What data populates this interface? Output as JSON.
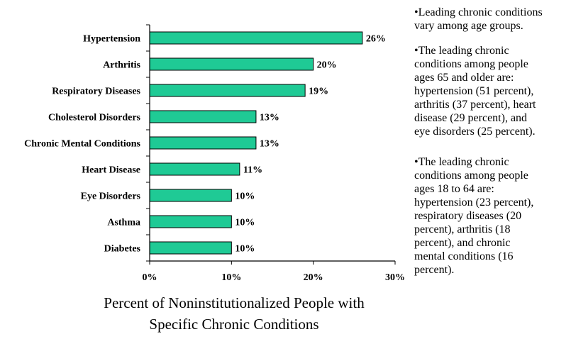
{
  "chart_data": {
    "type": "bar",
    "orientation": "horizontal",
    "categories": [
      "Hypertension",
      "Arthritis",
      "Respiratory Diseases",
      "Cholesterol Disorders",
      "Chronic Mental Conditions",
      "Heart Disease",
      "Eye Disorders",
      "Asthma",
      "Diabetes"
    ],
    "values": [
      26,
      20,
      19,
      13,
      13,
      11,
      10,
      10,
      10
    ],
    "data_labels": [
      "26%",
      "20%",
      "19%",
      "13%",
      "13%",
      "11%",
      "10%",
      "10%",
      "10%"
    ],
    "xlabel_lines": [
      "Percent of Noninstitutionalized People with",
      "Specific Chronic Conditions"
    ],
    "xlim": [
      0,
      30
    ],
    "xticks": [
      0,
      10,
      20,
      30
    ],
    "xtick_labels": [
      "0%",
      "10%",
      "20%",
      "30%"
    ],
    "grid": false,
    "bar_color": "#1fca95"
  },
  "notes": [
    "•Leading chronic conditions\nvary among age groups.",
    "•The leading chronic\nconditions among people\nages 65 and older are:\nhypertension (51 percent),\narthritis (37 percent), heart\ndisease (29 percent), and\neye disorders (25 percent).",
    "•The leading chronic\nconditions among people\nages 18 to 64 are:\nhypertension (23 percent),\nrespiratory diseases (20\npercent), arthritis (18\npercent), and chronic\nmental conditions (16\npercent)."
  ]
}
